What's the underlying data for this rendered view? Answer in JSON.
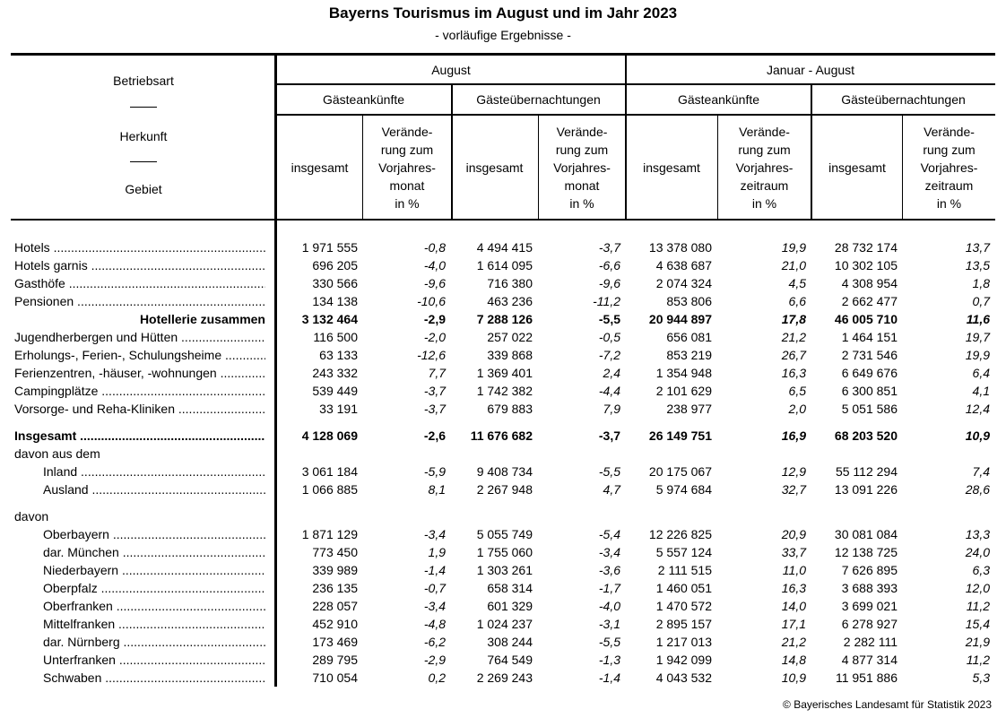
{
  "title": "Bayerns Tourismus im August und im Jahr 2023",
  "subtitle": "- vorläufige Ergebnisse -",
  "header": {
    "stub": [
      "Betriebsart",
      "Herkunft",
      "Gebiet"
    ],
    "groups": [
      "August",
      "Januar - August"
    ],
    "subgroups": [
      "Gästeankünfte",
      "Gästeübernachtungen",
      "Gästeankünfte",
      "Gästeübernachtungen"
    ],
    "columns": [
      "insgesamt",
      "Verände-\nrung zum\nVorjahres-\nmonat\nin %",
      "insgesamt",
      "Verände-\nrung zum\nVorjahres-\nmonat\nin %",
      "insgesamt",
      "Verände-\nrung zum\nVorjahres-\nzeitraum\nin %",
      "insgesamt",
      "Verände-\nrung zum\nVorjahres-\nzeitraum\nin %"
    ]
  },
  "rows": [
    {
      "label": "Hotels",
      "values": [
        "1 971 555",
        "-0,8",
        "4 494 415",
        "-3,7",
        "13 378 080",
        "19,9",
        "28 732 174",
        "13,7"
      ]
    },
    {
      "label": "Hotels garnis",
      "values": [
        "696 205",
        "-4,0",
        "1 614 095",
        "-6,6",
        "4 638 687",
        "21,0",
        "10 302 105",
        "13,5"
      ]
    },
    {
      "label": "Gasthöfe",
      "values": [
        "330 566",
        "-9,6",
        "716 380",
        "-9,6",
        "2 074 324",
        "4,5",
        "4 308 954",
        "1,8"
      ]
    },
    {
      "label": "Pensionen",
      "values": [
        "134 138",
        "-10,6",
        "463 236",
        "-11,2",
        "853 806",
        "6,6",
        "2 662 477",
        "0,7"
      ]
    },
    {
      "label": "Hotellerie zusammen",
      "style": "subtotal",
      "values": [
        "3 132 464",
        "-2,9",
        "7 288 126",
        "-5,5",
        "20 944 897",
        "17,8",
        "46 005 710",
        "11,6"
      ]
    },
    {
      "label": "Jugendherbergen und Hütten",
      "values": [
        "116 500",
        "-2,0",
        "257 022",
        "-0,5",
        "656 081",
        "21,2",
        "1 464 151",
        "19,7"
      ]
    },
    {
      "label": "Erholungs-, Ferien-, Schulungsheime",
      "values": [
        "63 133",
        "-12,6",
        "339 868",
        "-7,2",
        "853 219",
        "26,7",
        "2 731 546",
        "19,9"
      ]
    },
    {
      "label": "Ferienzentren, -häuser, -wohnungen",
      "values": [
        "243 332",
        "7,7",
        "1 369 401",
        "2,4",
        "1 354 948",
        "16,3",
        "6 649 676",
        "6,4"
      ]
    },
    {
      "label": "Campingplätze",
      "values": [
        "539 449",
        "-3,7",
        "1 742 382",
        "-4,4",
        "2 101 629",
        "6,5",
        "6 300 851",
        "4,1"
      ]
    },
    {
      "label": "Vorsorge- und Reha-Kliniken",
      "values": [
        "33 191",
        "-3,7",
        "679 883",
        "7,9",
        "238 977",
        "2,0",
        "5 051 586",
        "12,4"
      ]
    },
    {
      "label": "Insgesamt",
      "style": "total",
      "gap": true,
      "values": [
        "4 128 069",
        "-2,6",
        "11 676 682",
        "-3,7",
        "26 149 751",
        "16,9",
        "68 203 520",
        "10,9"
      ]
    },
    {
      "label": "davon aus dem",
      "style": "heading"
    },
    {
      "label": "Inland",
      "style": "indent",
      "values": [
        "3 061 184",
        "-5,9",
        "9 408 734",
        "-5,5",
        "20 175 067",
        "12,9",
        "55 112 294",
        "7,4"
      ]
    },
    {
      "label": "Ausland",
      "style": "indent",
      "values": [
        "1 066 885",
        "8,1",
        "2 267 948",
        "4,7",
        "5 974 684",
        "32,7",
        "13 091 226",
        "28,6"
      ]
    },
    {
      "label": "davon",
      "style": "heading",
      "gap": true
    },
    {
      "label": "Oberbayern",
      "style": "indent",
      "values": [
        "1 871 129",
        "-3,4",
        "5 055 749",
        "-5,4",
        "12 226 825",
        "20,9",
        "30 081 084",
        "13,3"
      ]
    },
    {
      "label": "dar. München",
      "style": "indent",
      "values": [
        "773 450",
        "1,9",
        "1 755 060",
        "-3,4",
        "5 557 124",
        "33,7",
        "12 138 725",
        "24,0"
      ]
    },
    {
      "label": "Niederbayern",
      "style": "indent",
      "values": [
        "339 989",
        "-1,4",
        "1 303 261",
        "-3,6",
        "2 111 515",
        "11,0",
        "7 626 895",
        "6,3"
      ]
    },
    {
      "label": "Oberpfalz",
      "style": "indent",
      "values": [
        "236 135",
        "-0,7",
        "658 314",
        "-1,7",
        "1 460 051",
        "16,3",
        "3 688 393",
        "12,0"
      ]
    },
    {
      "label": "Oberfranken",
      "style": "indent",
      "values": [
        "228 057",
        "-3,4",
        "601 329",
        "-4,0",
        "1 470 572",
        "14,0",
        "3 699 021",
        "11,2"
      ]
    },
    {
      "label": "Mittelfranken",
      "style": "indent",
      "values": [
        "452 910",
        "-4,8",
        "1 024 237",
        "-3,1",
        "2 895 157",
        "17,1",
        "6 278 927",
        "15,4"
      ]
    },
    {
      "label": "dar. Nürnberg",
      "style": "indent",
      "values": [
        "173 469",
        "-6,2",
        "308 244",
        "-5,5",
        "1 217 013",
        "21,2",
        "2 282 111",
        "21,9"
      ]
    },
    {
      "label": "Unterfranken",
      "style": "indent",
      "values": [
        "289 795",
        "-2,9",
        "764 549",
        "-1,3",
        "1 942 099",
        "14,8",
        "4 877 314",
        "11,2"
      ]
    },
    {
      "label": "Schwaben",
      "style": "indent",
      "values": [
        "710 054",
        "0,2",
        "2 269 243",
        "-1,4",
        "4 043 532",
        "10,9",
        "11 951 886",
        "5,3"
      ]
    }
  ],
  "footer": "© Bayerisches Landesamt für Statistik 2023"
}
